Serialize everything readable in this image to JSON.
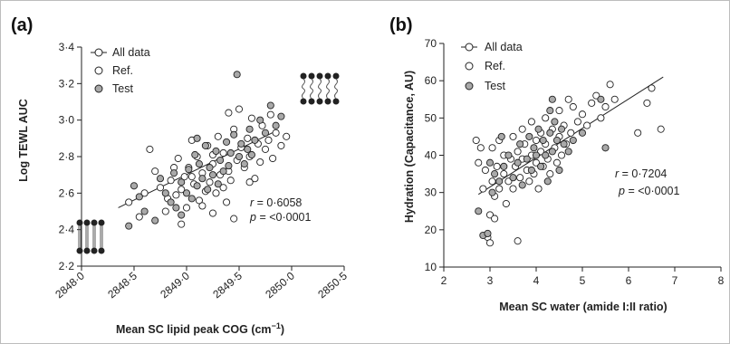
{
  "chart_data": [
    {
      "type": "scatter",
      "panel_label": "(a)",
      "xlabel": "Mean SC lipid peak COG (cm",
      "xlabel_sup": "−1",
      "xlabel_end": ")",
      "ylabel": "Log TEWL AUC",
      "xlim": [
        2848.0,
        2850.5
      ],
      "ylim": [
        2.2,
        3.4
      ],
      "x_ticks": [
        "2848·0",
        "2848·5",
        "2849·0",
        "2849·5",
        "2850·0",
        "2850·5"
      ],
      "y_ticks": [
        "2·2",
        "2·4",
        "2·6",
        "2·8",
        "3·0",
        "3·2",
        "3·4"
      ],
      "legend": [
        "All data",
        "Ref.",
        "Test"
      ],
      "stats": {
        "r_label": "r",
        "r_value": "= 0·6058",
        "p_label": "p",
        "p_value": "= <0·0001"
      },
      "fit_line": [
        [
          2848.35,
          2.52
        ],
        [
          2849.85,
          2.94
        ]
      ],
      "series": [
        {
          "name": "Ref.",
          "marker": "open",
          "points": [
            [
              2848.45,
              2.55
            ],
            [
              2848.55,
              2.47
            ],
            [
              2848.6,
              2.6
            ],
            [
              2848.65,
              2.84
            ],
            [
              2848.7,
              2.72
            ],
            [
              2848.75,
              2.63
            ],
            [
              2848.8,
              2.5
            ],
            [
              2848.82,
              2.57
            ],
            [
              2848.85,
              2.67
            ],
            [
              2848.88,
              2.74
            ],
            [
              2848.9,
              2.59
            ],
            [
              2848.92,
              2.79
            ],
            [
              2848.95,
              2.62
            ],
            [
              2848.98,
              2.69
            ],
            [
              2849.0,
              2.52
            ],
            [
              2849.02,
              2.74
            ],
            [
              2849.05,
              2.89
            ],
            [
              2849.07,
              2.65
            ],
            [
              2849.1,
              2.8
            ],
            [
              2849.12,
              2.56
            ],
            [
              2849.15,
              2.71
            ],
            [
              2849.18,
              2.61
            ],
            [
              2849.2,
              2.86
            ],
            [
              2849.22,
              2.66
            ],
            [
              2849.25,
              2.76
            ],
            [
              2849.28,
              2.6
            ],
            [
              2849.3,
              2.91
            ],
            [
              2849.32,
              2.7
            ],
            [
              2849.35,
              2.82
            ],
            [
              2849.38,
              2.55
            ],
            [
              2849.4,
              2.72
            ],
            [
              2849.42,
              2.67
            ],
            [
              2849.45,
              2.95
            ],
            [
              2849.48,
              2.78
            ],
            [
              2849.5,
              3.06
            ],
            [
              2849.52,
              2.85
            ],
            [
              2849.55,
              2.74
            ],
            [
              2849.58,
              2.9
            ],
            [
              2849.6,
              2.8
            ],
            [
              2849.62,
              3.01
            ],
            [
              2849.65,
              2.68
            ],
            [
              2849.68,
              2.87
            ],
            [
              2849.7,
              2.77
            ],
            [
              2849.72,
              2.97
            ],
            [
              2849.75,
              2.84
            ],
            [
              2849.78,
              2.89
            ],
            [
              2849.8,
              3.03
            ],
            [
              2849.82,
              2.79
            ],
            [
              2849.85,
              2.93
            ],
            [
              2849.9,
              2.86
            ],
            [
              2849.95,
              2.91
            ],
            [
              2849.25,
              2.49
            ],
            [
              2849.45,
              2.46
            ],
            [
              2848.95,
              2.43
            ],
            [
              2849.15,
              2.53
            ],
            [
              2849.35,
              2.63
            ],
            [
              2849.6,
              2.66
            ],
            [
              2849.05,
              2.69
            ],
            [
              2849.25,
              2.81
            ],
            [
              2849.4,
              3.04
            ]
          ]
        },
        {
          "name": "Test",
          "marker": "filled",
          "points": [
            [
              2848.45,
              2.42
            ],
            [
              2848.5,
              2.64
            ],
            [
              2848.6,
              2.5
            ],
            [
              2848.7,
              2.45
            ],
            [
              2848.75,
              2.68
            ],
            [
              2848.8,
              2.6
            ],
            [
              2848.85,
              2.55
            ],
            [
              2848.88,
              2.71
            ],
            [
              2848.9,
              2.52
            ],
            [
              2848.95,
              2.66
            ],
            [
              2849.0,
              2.6
            ],
            [
              2849.02,
              2.73
            ],
            [
              2849.05,
              2.57
            ],
            [
              2849.08,
              2.81
            ],
            [
              2849.1,
              2.64
            ],
            [
              2849.12,
              2.76
            ],
            [
              2849.15,
              2.68
            ],
            [
              2849.18,
              2.86
            ],
            [
              2849.2,
              2.62
            ],
            [
              2849.22,
              2.74
            ],
            [
              2849.25,
              2.7
            ],
            [
              2849.28,
              2.83
            ],
            [
              2849.3,
              2.65
            ],
            [
              2849.32,
              2.78
            ],
            [
              2849.35,
              2.72
            ],
            [
              2849.38,
              2.88
            ],
            [
              2849.4,
              2.75
            ],
            [
              2849.42,
              2.82
            ],
            [
              2849.45,
              2.92
            ],
            [
              2849.48,
              3.25
            ],
            [
              2849.5,
              2.8
            ],
            [
              2849.52,
              2.87
            ],
            [
              2849.55,
              2.76
            ],
            [
              2849.58,
              2.84
            ],
            [
              2849.6,
              2.95
            ],
            [
              2849.62,
              2.81
            ],
            [
              2849.65,
              2.89
            ],
            [
              2849.7,
              3.0
            ],
            [
              2849.75,
              2.93
            ],
            [
              2849.8,
              3.08
            ],
            [
              2849.85,
              2.97
            ],
            [
              2849.9,
              3.02
            ],
            [
              2848.55,
              2.58
            ],
            [
              2848.95,
              2.48
            ],
            [
              2849.1,
              2.9
            ]
          ]
        }
      ]
    },
    {
      "type": "scatter",
      "panel_label": "(b)",
      "xlabel": "Mean SC water (amide I:II ratio)",
      "ylabel": "Hydration (Capacitance, AU)",
      "xlim": [
        2,
        8
      ],
      "ylim": [
        10,
        70
      ],
      "x_ticks": [
        "2",
        "3",
        "4",
        "5",
        "6",
        "7",
        "8"
      ],
      "y_ticks": [
        "10",
        "20",
        "30",
        "40",
        "50",
        "60",
        "70"
      ],
      "legend": [
        "All data",
        "Ref.",
        "Test"
      ],
      "stats": {
        "r_label": "r",
        "r_value": "= 0·7204",
        "p_label": "p",
        "p_value": "= <0·0001"
      },
      "fit_line": [
        [
          2.75,
          29.5
        ],
        [
          6.75,
          61.0
        ]
      ],
      "series": [
        {
          "name": "Ref.",
          "marker": "open",
          "points": [
            [
              2.7,
              44
            ],
            [
              2.75,
              38
            ],
            [
              2.8,
              42
            ],
            [
              2.85,
              31
            ],
            [
              2.9,
              36
            ],
            [
              2.95,
              18
            ],
            [
              3.0,
              16.5
            ],
            [
              3.0,
              24
            ],
            [
              3.05,
              33
            ],
            [
              3.05,
              42
            ],
            [
              3.1,
              23
            ],
            [
              3.1,
              29
            ],
            [
              3.15,
              37
            ],
            [
              3.2,
              44
            ],
            [
              3.2,
              31
            ],
            [
              3.3,
              35
            ],
            [
              3.3,
              40
            ],
            [
              3.35,
              27
            ],
            [
              3.4,
              33
            ],
            [
              3.45,
              39
            ],
            [
              3.5,
              31
            ],
            [
              3.5,
              45
            ],
            [
              3.55,
              37
            ],
            [
              3.6,
              17
            ],
            [
              3.6,
              41
            ],
            [
              3.65,
              34
            ],
            [
              3.7,
              47
            ],
            [
              3.7,
              39
            ],
            [
              3.75,
              43
            ],
            [
              3.8,
              36
            ],
            [
              3.85,
              33
            ],
            [
              3.9,
              49
            ],
            [
              3.9,
              40
            ],
            [
              3.95,
              35
            ],
            [
              4.0,
              44
            ],
            [
              4.0,
              38
            ],
            [
              4.05,
              31
            ],
            [
              4.1,
              46
            ],
            [
              4.1,
              41
            ],
            [
              4.15,
              37
            ],
            [
              4.2,
              50
            ],
            [
              4.2,
              43
            ],
            [
              4.25,
              39
            ],
            [
              4.3,
              35
            ],
            [
              4.35,
              47
            ],
            [
              4.4,
              42
            ],
            [
              4.45,
              38
            ],
            [
              4.5,
              52
            ],
            [
              4.5,
              45
            ],
            [
              4.55,
              40
            ],
            [
              4.6,
              48
            ],
            [
              4.65,
              43
            ],
            [
              4.7,
              55
            ],
            [
              4.75,
              46
            ],
            [
              4.8,
              53
            ],
            [
              4.9,
              49
            ],
            [
              5.0,
              51
            ],
            [
              5.1,
              48
            ],
            [
              5.2,
              54
            ],
            [
              5.3,
              56
            ],
            [
              5.4,
              50
            ],
            [
              5.5,
              53
            ],
            [
              5.6,
              59
            ],
            [
              5.7,
              55
            ],
            [
              6.2,
              46
            ],
            [
              6.4,
              54
            ],
            [
              6.5,
              58
            ],
            [
              6.7,
              47
            ]
          ]
        },
        {
          "name": "Test",
          "marker": "filled",
          "points": [
            [
              2.75,
              25
            ],
            [
              2.85,
              18.5
            ],
            [
              2.95,
              19
            ],
            [
              3.0,
              38
            ],
            [
              3.05,
              30
            ],
            [
              3.1,
              35
            ],
            [
              3.2,
              33
            ],
            [
              3.25,
              45
            ],
            [
              3.3,
              37
            ],
            [
              3.4,
              40
            ],
            [
              3.5,
              34
            ],
            [
              3.6,
              38
            ],
            [
              3.65,
              43
            ],
            [
              3.7,
              32
            ],
            [
              3.8,
              39
            ],
            [
              3.85,
              45
            ],
            [
              3.9,
              36
            ],
            [
              3.95,
              42
            ],
            [
              4.0,
              40
            ],
            [
              4.05,
              47
            ],
            [
              4.1,
              37
            ],
            [
              4.15,
              44
            ],
            [
              4.2,
              40
            ],
            [
              4.25,
              33
            ],
            [
              4.3,
              46
            ],
            [
              4.35,
              41
            ],
            [
              4.4,
              49
            ],
            [
              4.45,
              44
            ],
            [
              4.5,
              36
            ],
            [
              4.55,
              47
            ],
            [
              4.6,
              43
            ],
            [
              4.7,
              41
            ],
            [
              4.8,
              44
            ],
            [
              5.0,
              46
            ],
            [
              5.4,
              55
            ],
            [
              5.5,
              42
            ],
            [
              4.3,
              52
            ],
            [
              4.35,
              55
            ]
          ]
        }
      ]
    }
  ],
  "colors": {
    "test_fill": "#a9a9a9",
    "marker_stroke": "#222222",
    "line": "#222222",
    "frame": "#bdbdbd"
  }
}
